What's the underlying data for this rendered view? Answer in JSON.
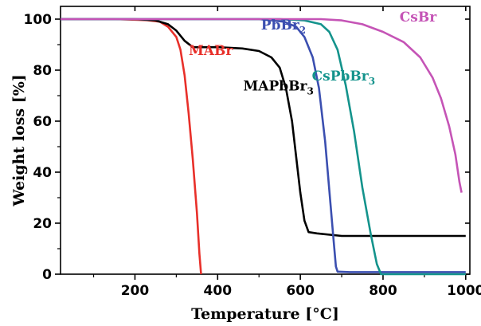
{
  "chart_data": {
    "type": "line",
    "xlabel": "Temperature [°C]",
    "ylabel": "Weight loss [%]",
    "xlim": [
      20,
      1010
    ],
    "ylim": [
      0,
      105
    ],
    "x_ticks": [
      200,
      400,
      600,
      800,
      1000
    ],
    "y_ticks": [
      0,
      20,
      40,
      60,
      80,
      100
    ],
    "x_tick_labels": [
      "200",
      "400",
      "600",
      "800",
      "1000"
    ],
    "y_tick_labels": [
      "0",
      "20",
      "40",
      "60",
      "80",
      "100"
    ],
    "grid": false,
    "series": [
      {
        "name": "MABr",
        "label_main": "MABr",
        "label_sub": "",
        "label_at": [
          330,
          86
        ],
        "color": "#e8302a",
        "points": [
          [
            20,
            100
          ],
          [
            150,
            100
          ],
          [
            230,
            99.6
          ],
          [
            260,
            99
          ],
          [
            280,
            97
          ],
          [
            300,
            93
          ],
          [
            310,
            88
          ],
          [
            320,
            78
          ],
          [
            330,
            63
          ],
          [
            340,
            45
          ],
          [
            350,
            24
          ],
          [
            356,
            8
          ],
          [
            360,
            0
          ]
        ]
      },
      {
        "name": "MAPbBr3",
        "label_main": "MAPbBr",
        "label_sub": "3",
        "label_at": [
          462,
          72
        ],
        "color": "#000000",
        "points": [
          [
            20,
            100
          ],
          [
            200,
            100
          ],
          [
            250,
            99.5
          ],
          [
            280,
            98
          ],
          [
            300,
            95.5
          ],
          [
            320,
            91.5
          ],
          [
            340,
            89
          ],
          [
            400,
            89
          ],
          [
            460,
            88.5
          ],
          [
            500,
            87.5
          ],
          [
            530,
            85
          ],
          [
            550,
            81
          ],
          [
            565,
            73
          ],
          [
            580,
            60
          ],
          [
            590,
            46
          ],
          [
            600,
            32
          ],
          [
            610,
            21
          ],
          [
            620,
            16.5
          ],
          [
            640,
            16
          ],
          [
            700,
            15
          ],
          [
            750,
            15
          ],
          [
            800,
            15
          ],
          [
            1000,
            15
          ]
        ]
      },
      {
        "name": "PbBr2",
        "label_main": "PbBr",
        "label_sub": "2",
        "label_at": [
          505,
          96
        ],
        "color": "#3b4fb0",
        "points": [
          [
            20,
            100
          ],
          [
            500,
            100
          ],
          [
            560,
            99
          ],
          [
            590,
            97
          ],
          [
            610,
            93
          ],
          [
            630,
            85
          ],
          [
            645,
            73
          ],
          [
            660,
            52
          ],
          [
            670,
            33
          ],
          [
            680,
            14
          ],
          [
            686,
            3
          ],
          [
            690,
            1
          ],
          [
            720,
            0.8
          ],
          [
            1000,
            0.8
          ]
        ]
      },
      {
        "name": "CsPbBr3",
        "label_main": "CsPbBr",
        "label_sub": "3",
        "label_at": [
          628,
          76
        ],
        "color": "#14938c",
        "points": [
          [
            20,
            100
          ],
          [
            550,
            100
          ],
          [
            610,
            99.5
          ],
          [
            650,
            98
          ],
          [
            670,
            95
          ],
          [
            690,
            88
          ],
          [
            710,
            74
          ],
          [
            730,
            56
          ],
          [
            750,
            34
          ],
          [
            770,
            16
          ],
          [
            785,
            4
          ],
          [
            795,
            0
          ],
          [
            1000,
            0
          ]
        ]
      },
      {
        "name": "CsBr",
        "label_main": "CsBr",
        "label_sub": "",
        "label_at": [
          840,
          99
        ],
        "color": "#c554b6",
        "points": [
          [
            20,
            100
          ],
          [
            650,
            100
          ],
          [
            700,
            99.5
          ],
          [
            750,
            98
          ],
          [
            800,
            95
          ],
          [
            850,
            91
          ],
          [
            890,
            85
          ],
          [
            920,
            77
          ],
          [
            940,
            69
          ],
          [
            960,
            58
          ],
          [
            975,
            47
          ],
          [
            985,
            36
          ],
          [
            990,
            32
          ]
        ]
      }
    ]
  }
}
